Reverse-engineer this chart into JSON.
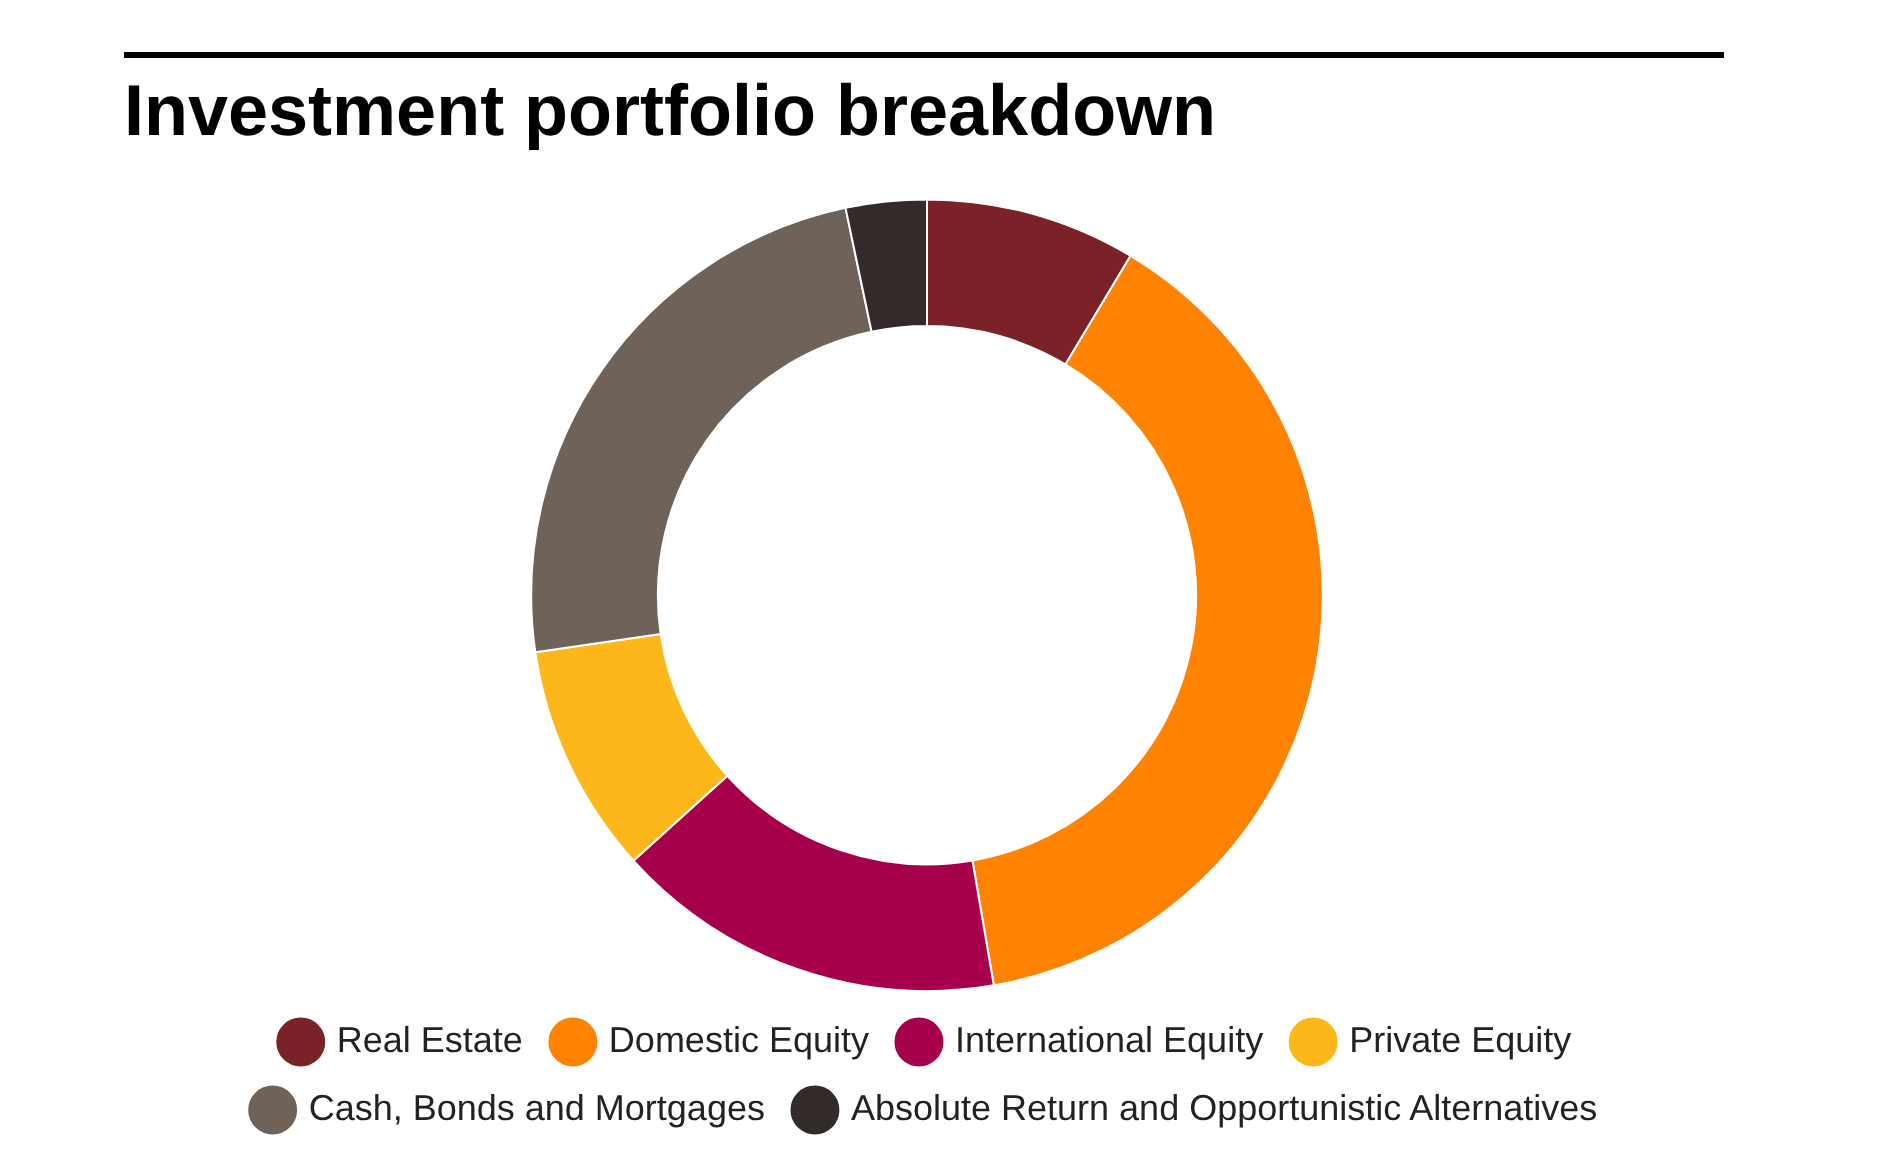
{
  "chart_data": {
    "type": "donut",
    "title": "Investment portfolio breakdown",
    "categories": [
      "Real Estate",
      "Domestic Equity",
      "International Equity",
      "Private Equity",
      "Cash, Bonds and Mortgages",
      "Absolute Return and Opportunistic Alternatives"
    ],
    "values": [
      8.6,
      38.7,
      16.0,
      9.4,
      24.0,
      3.3
    ],
    "colors": [
      "#7b2128",
      "#ff8200",
      "#a6004c",
      "#fdb71a",
      "#6e6259",
      "#332a2a"
    ],
    "legend": "bottom"
  }
}
